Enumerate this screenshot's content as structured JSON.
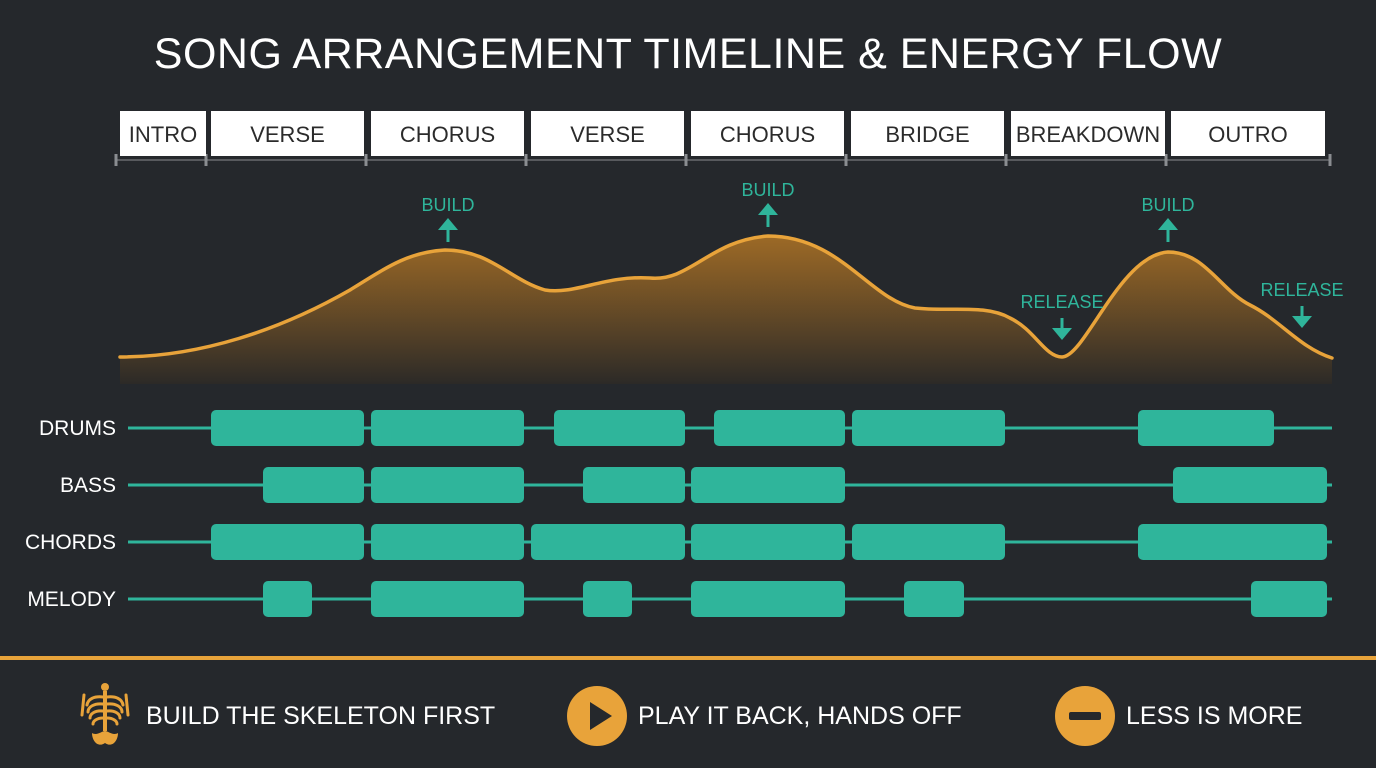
{
  "title": "SONG ARRANGEMENT TIMELINE & ENERGY FLOW",
  "colors": {
    "background": "#25282c",
    "accent_orange": "#e8a33a",
    "teal": "#2fb59b",
    "section_box": "#ffffff"
  },
  "sections": [
    "INTRO",
    "VERSE",
    "CHORUS",
    "VERSE",
    "CHORUS",
    "BRIDGE",
    "BREAKDOWN",
    "OUTRO"
  ],
  "energy_markers": [
    {
      "label": "BUILD",
      "direction": "up"
    },
    {
      "label": "BUILD",
      "direction": "up"
    },
    {
      "label": "RELEASE",
      "direction": "down"
    },
    {
      "label": "BUILD",
      "direction": "up"
    },
    {
      "label": "RELEASE",
      "direction": "down"
    }
  ],
  "tracks": [
    {
      "name": "DRUMS"
    },
    {
      "name": "BASS"
    },
    {
      "name": "CHORDS"
    },
    {
      "name": "MELODY"
    }
  ],
  "tips": [
    {
      "text": "BUILD THE SKELETON FIRST",
      "icon": "skeleton-icon"
    },
    {
      "text": "PLAY IT BACK, HANDS OFF",
      "icon": "play-icon"
    },
    {
      "text": "LESS IS MORE",
      "icon": "minus-icon"
    }
  ]
}
